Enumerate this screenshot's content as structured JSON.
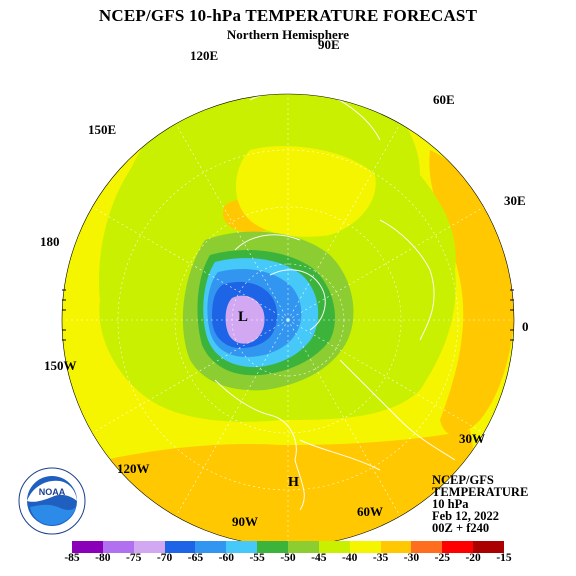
{
  "title": "NCEP/GFS 10-hPa TEMPERATURE FORECAST",
  "subtitle": "Northern Hemisphere",
  "longitude_labels": {
    "lon_90e": "90E",
    "lon_120e": "120E",
    "lon_60e": "60E",
    "lon_150e": "150E",
    "lon_30e": "30E",
    "lon_180": "180",
    "lon_0": "0",
    "lon_150w": "150W",
    "lon_30w": "30W",
    "lon_120w": "120W",
    "lon_60w": "60W",
    "lon_90w": "90W"
  },
  "markers": {
    "low": "L",
    "high": "H"
  },
  "info": {
    "line1": "NCEP/GFS",
    "line2": "TEMPERATURE",
    "line3": "10 hPa",
    "line4": "Feb 12, 2022",
    "line5": "00Z + f240"
  },
  "colorbar": {
    "labels": [
      "-85",
      "-80",
      "-75",
      "-70",
      "-65",
      "-60",
      "-55",
      "-50",
      "-45",
      "-40",
      "-35",
      "-30",
      "-25",
      "-20",
      "-15"
    ],
    "colors": [
      "#8a00b8",
      "#b070f0",
      "#d2a8f2",
      "#1e64e6",
      "#3296f0",
      "#46c8f8",
      "#3cb43c",
      "#8ccd32",
      "#c8f000",
      "#f5f500",
      "#ffc800",
      "#ff6e1e",
      "#ff0000",
      "#aa0000",
      "#7a4a2a"
    ]
  },
  "logo": {
    "name": "NOAA",
    "ring_text": "NATIONAL OCEANIC AND ATMOSPHERIC ADMINISTRATION · U.S. DEPARTMENT OF COMMERCE"
  }
}
